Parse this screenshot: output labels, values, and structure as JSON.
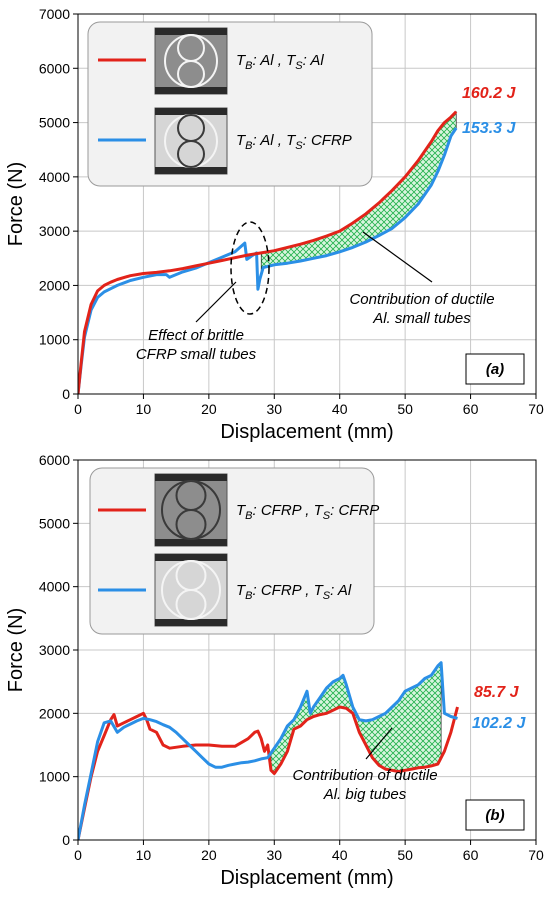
{
  "colors": {
    "red": "#e2231a",
    "blue": "#2b8fe6",
    "hatch": "#22b14c",
    "hatch_bg": "#d9f5df"
  },
  "chart_data": [
    {
      "type": "line",
      "panel_label": "(a)",
      "xlabel": "Displacement (mm)",
      "ylabel": "Force (N)",
      "xlim": [
        0,
        70
      ],
      "ylim": [
        0,
        7000
      ],
      "xticks": [
        0,
        10,
        20,
        30,
        40,
        50,
        60,
        70
      ],
      "yticks": [
        0,
        1000,
        2000,
        3000,
        4000,
        5000,
        6000,
        7000
      ],
      "grid": true,
      "legend_position": "top-left",
      "legend": [
        {
          "key": "red",
          "label": {
            "tb": "Al",
            "ts": "Al"
          }
        },
        {
          "key": "blue",
          "label": {
            "tb": "Al",
            "ts": "CFRP"
          }
        }
      ],
      "energy_labels": [
        {
          "key": "red",
          "text": "160.2 J"
        },
        {
          "key": "blue",
          "text": "153.3 J"
        }
      ],
      "annotations": [
        {
          "lines": [
            "Effect of brittle",
            "CFRP small tubes"
          ]
        },
        {
          "lines": [
            "Contribution of ductile",
            "Al. small tubes"
          ]
        }
      ],
      "series": [
        {
          "key": "red",
          "x": [
            0,
            0.5,
            1,
            2,
            3,
            4,
            5,
            6,
            8,
            10,
            12,
            14,
            16,
            18,
            20,
            22,
            24,
            26,
            28,
            30,
            32,
            34,
            36,
            38,
            40,
            42,
            44,
            46,
            48,
            50,
            52,
            54,
            55,
            56,
            57,
            57.8
          ],
          "y": [
            0,
            600,
            1150,
            1650,
            1900,
            2000,
            2060,
            2110,
            2180,
            2220,
            2240,
            2270,
            2310,
            2360,
            2410,
            2460,
            2510,
            2560,
            2600,
            2640,
            2700,
            2760,
            2830,
            2910,
            3000,
            3150,
            3320,
            3520,
            3750,
            4000,
            4300,
            4650,
            4850,
            5000,
            5100,
            5200
          ]
        },
        {
          "key": "blue",
          "x": [
            0,
            0.5,
            1,
            2,
            3,
            4,
            5,
            6,
            8,
            10,
            12,
            13.5,
            14,
            16,
            18,
            20,
            22,
            24,
            25.5,
            25.8,
            26.5,
            27.3,
            27.5,
            27.8,
            28.3,
            30,
            32,
            34,
            36,
            38,
            40,
            42,
            44,
            46,
            48,
            50,
            52,
            54,
            55,
            56,
            57,
            57.8
          ],
          "y": [
            0,
            550,
            1050,
            1550,
            1780,
            1880,
            1940,
            2000,
            2090,
            2150,
            2200,
            2200,
            2150,
            2250,
            2320,
            2420,
            2520,
            2620,
            2780,
            2480,
            2540,
            2600,
            1930,
            2120,
            2330,
            2380,
            2410,
            2450,
            2500,
            2550,
            2620,
            2700,
            2800,
            2920,
            3050,
            3250,
            3500,
            3850,
            4100,
            4400,
            4750,
            4900
          ]
        }
      ]
    },
    {
      "type": "line",
      "panel_label": "(b)",
      "xlabel": "Displacement (mm)",
      "ylabel": "Force (N)",
      "xlim": [
        0,
        70
      ],
      "ylim": [
        0,
        6000
      ],
      "xticks": [
        0,
        10,
        20,
        30,
        40,
        50,
        60,
        70
      ],
      "yticks": [
        0,
        1000,
        2000,
        3000,
        4000,
        5000,
        6000
      ],
      "grid": true,
      "legend_position": "top-left",
      "legend": [
        {
          "key": "red",
          "label": {
            "tb": "CFRP",
            "ts": "CFRP"
          }
        },
        {
          "key": "blue",
          "label": {
            "tb": "CFRP",
            "ts": "Al"
          }
        }
      ],
      "energy_labels": [
        {
          "key": "red",
          "text": "85.7 J"
        },
        {
          "key": "blue",
          "text": "102.2 J"
        }
      ],
      "annotations": [
        {
          "lines": [
            "Contribution of ductile",
            "Al. big tubes"
          ]
        }
      ],
      "series": [
        {
          "key": "red",
          "x": [
            0,
            1,
            2,
            3,
            4,
            5,
            5.5,
            6,
            7,
            8,
            9,
            10,
            10.5,
            11,
            12,
            13,
            14,
            16,
            18,
            20,
            22,
            24,
            26,
            27,
            27.5,
            28,
            28.5,
            29,
            29.5,
            30,
            31,
            32,
            33,
            34,
            35,
            36,
            37,
            38,
            39,
            40,
            41,
            42,
            43,
            44,
            45,
            46,
            47,
            48,
            49,
            50,
            51,
            52,
            53,
            54,
            55,
            56,
            57,
            58
          ],
          "y": [
            0,
            500,
            1000,
            1400,
            1650,
            1900,
            1980,
            1800,
            1850,
            1900,
            1950,
            2000,
            1900,
            1750,
            1700,
            1500,
            1450,
            1480,
            1500,
            1500,
            1480,
            1480,
            1600,
            1700,
            1720,
            1600,
            1400,
            1500,
            1100,
            1050,
            1200,
            1400,
            1750,
            1800,
            1900,
            1950,
            1980,
            2000,
            2050,
            2100,
            2080,
            2000,
            1700,
            1500,
            1300,
            1180,
            1120,
            1100,
            1080,
            1100,
            1120,
            1140,
            1150,
            1170,
            1200,
            1400,
            1700,
            2100
          ]
        },
        {
          "key": "blue",
          "x": [
            0,
            1,
            2,
            3,
            4,
            5,
            6,
            7,
            8,
            9,
            10,
            11,
            12,
            13,
            14,
            15,
            16,
            17,
            18,
            19,
            20,
            21,
            22,
            23,
            24,
            25,
            26,
            27,
            28,
            29,
            30,
            31,
            32,
            33,
            34,
            35,
            35.5,
            36,
            37,
            38,
            39,
            40,
            40.5,
            41,
            42,
            43,
            44,
            45,
            46,
            47,
            48,
            49,
            50,
            51,
            52,
            53,
            54,
            55,
            55.5,
            56,
            57,
            58
          ],
          "y": [
            0,
            550,
            1050,
            1550,
            1850,
            1880,
            1700,
            1780,
            1830,
            1880,
            1920,
            1900,
            1870,
            1820,
            1780,
            1700,
            1600,
            1500,
            1400,
            1300,
            1200,
            1150,
            1150,
            1180,
            1200,
            1220,
            1230,
            1250,
            1280,
            1300,
            1450,
            1600,
            1800,
            1900,
            2100,
            2350,
            2000,
            2100,
            2250,
            2400,
            2500,
            2550,
            2600,
            2450,
            2100,
            1900,
            1880,
            1900,
            1950,
            2000,
            2100,
            2200,
            2350,
            2400,
            2450,
            2550,
            2600,
            2750,
            2800,
            2000,
            1950,
            1920
          ]
        }
      ]
    }
  ]
}
